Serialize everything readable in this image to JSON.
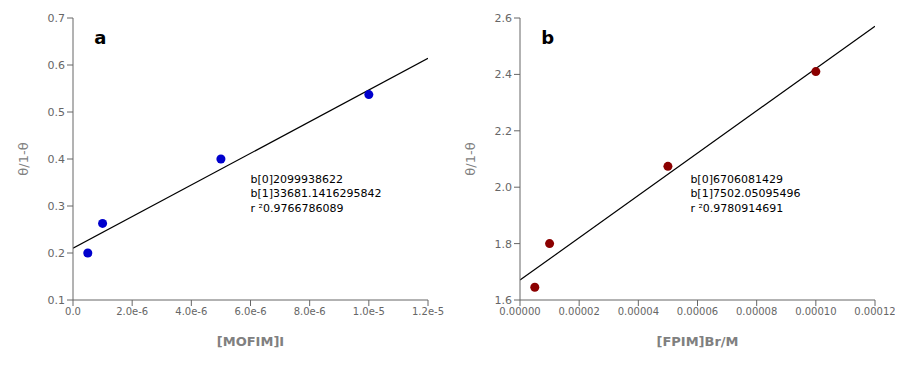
{
  "chart_data": [
    {
      "type": "scatter",
      "title": "a",
      "x_label": "[MOFIM]I",
      "y_label": "θ/1-θ",
      "xlim": [
        0,
        1.2e-05
      ],
      "ylim": [
        0.1,
        0.7
      ],
      "xticks": [
        {
          "value": 0,
          "label": "0.0"
        },
        {
          "value": 2e-06,
          "label": "2.0e-6"
        },
        {
          "value": 4e-06,
          "label": "4.0e-6"
        },
        {
          "value": 6e-06,
          "label": "6.0e-6"
        },
        {
          "value": 8e-06,
          "label": "8.0e-6"
        },
        {
          "value": 1e-05,
          "label": "1.0e-5"
        },
        {
          "value": 1.2e-05,
          "label": "1.2e-5"
        }
      ],
      "yticks": [
        0.1,
        0.2,
        0.3,
        0.4,
        0.5,
        0.6,
        0.7
      ],
      "series": [
        {
          "type": "line",
          "color": "#000000",
          "x": [
            0,
            1.2e-05
          ],
          "values": [
            0.2099938622,
            0.61416756175501
          ]
        },
        {
          "type": "scatter",
          "color": "#0000CD",
          "x": [
            5e-07,
            1e-06,
            5e-06,
            1e-05
          ],
          "values": [
            0.2,
            0.263,
            0.4,
            0.537
          ]
        }
      ],
      "annotations": [
        "b[0]2099938622",
        "b[1]33681.1416295842",
        "r ²0.9766786089"
      ]
    },
    {
      "type": "scatter",
      "title": "b",
      "x_label": "[FPIM]Br/M",
      "y_label": "θ/1-θ",
      "xlim": [
        0,
        0.00012
      ],
      "ylim": [
        1.6,
        2.6
      ],
      "xticks": [
        {
          "value": 0,
          "label": "0.00000"
        },
        {
          "value": 2e-05,
          "label": "0.00002"
        },
        {
          "value": 4e-05,
          "label": "0.00004"
        },
        {
          "value": 6e-05,
          "label": "0.00006"
        },
        {
          "value": 8e-05,
          "label": "0.00008"
        },
        {
          "value": 0.0001,
          "label": "0.00010"
        },
        {
          "value": 0.00012,
          "label": "0.00012"
        }
      ],
      "yticks": [
        1.6,
        1.8,
        {
          "value": 2,
          "label": "2.0"
        },
        2.2,
        2.4,
        2.6
      ],
      "series": [
        {
          "type": "line",
          "color": "#000000",
          "x": [
            0,
            0.00012
          ],
          "values": [
            1.6706081429,
            2.5708542574952
          ]
        },
        {
          "type": "scatter",
          "color": "#8B0000",
          "x": [
            5e-06,
            1e-05,
            5e-05,
            0.0001
          ],
          "values": [
            1.645,
            1.8,
            2.074,
            2.41
          ]
        }
      ],
      "annotations": [
        "b[0]6706081429",
        "b[1]7502.05095496",
        "r ²0.9780914691"
      ]
    }
  ]
}
